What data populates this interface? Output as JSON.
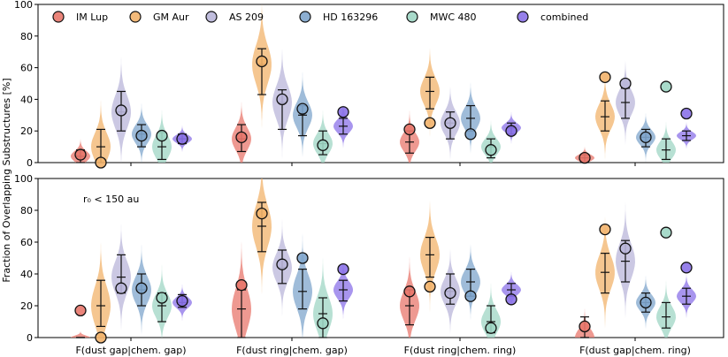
{
  "ylabel": "Fraction of Overlapping Substructures [%]",
  "legend": [
    {
      "key": "im",
      "label": "IM Lup",
      "color": "#e8776c"
    },
    {
      "key": "gm",
      "label": "GM Aur",
      "color": "#f2b36b"
    },
    {
      "key": "as",
      "label": "AS 209",
      "color": "#b9b6d9"
    },
    {
      "key": "hd",
      "label": "HD 163296",
      "color": "#7fa5cc"
    },
    {
      "key": "mwc",
      "label": "MWC 480",
      "color": "#9fd6c4"
    },
    {
      "key": "comb",
      "label": "combined",
      "color": "#8b72e8"
    }
  ],
  "categories": [
    "F(dust gap|chem. gap)",
    "F(dust ring|chem. gap)",
    "F(dust ring|chem. ring)",
    "F(dust gap|chem. ring)"
  ],
  "chart_data": [
    {
      "type": "violin",
      "panel": "top",
      "annotation": "",
      "ylim": [
        0,
        100
      ],
      "yticks": [
        0,
        20,
        40,
        60,
        80,
        100
      ],
      "categories": [
        "F(dust gap|chem. gap)",
        "F(dust ring|chem. gap)",
        "F(dust ring|chem. ring)",
        "F(dust gap|chem. ring)"
      ],
      "series": [
        {
          "name": "IM Lup",
          "observed": [
            5,
            16,
            21,
            3
          ],
          "median": [
            4,
            15,
            13,
            3
          ],
          "low": [
            0,
            7,
            6,
            0
          ],
          "high": [
            8,
            24,
            20,
            5
          ]
        },
        {
          "name": "GM Aur",
          "observed": [
            0,
            64,
            25,
            54
          ],
          "median": [
            10,
            62,
            45,
            29
          ],
          "low": [
            0,
            43,
            34,
            20
          ],
          "high": [
            21,
            72,
            54,
            39
          ]
        },
        {
          "name": "AS 209",
          "observed": [
            33,
            40,
            25,
            50
          ],
          "median": [
            32,
            38,
            25,
            38
          ],
          "low": [
            20,
            21,
            15,
            28
          ],
          "high": [
            45,
            46,
            32,
            47
          ]
        },
        {
          "name": "HD 163296",
          "observed": [
            17,
            34,
            18,
            16
          ],
          "median": [
            18,
            30,
            28,
            16
          ],
          "low": [
            10,
            17,
            20,
            10
          ],
          "high": [
            24,
            36,
            36,
            21
          ]
        },
        {
          "name": "MWC 480",
          "observed": [
            17,
            11,
            8,
            48
          ],
          "median": [
            10,
            12,
            10,
            8
          ],
          "low": [
            2,
            5,
            3,
            2
          ],
          "high": [
            19,
            20,
            15,
            15
          ]
        },
        {
          "name": "combined",
          "observed": [
            15,
            32,
            20,
            31
          ],
          "median": [
            15,
            23,
            22,
            17
          ],
          "low": [
            12,
            18,
            18,
            14
          ],
          "high": [
            18,
            28,
            25,
            20
          ]
        }
      ]
    },
    {
      "type": "violin",
      "panel": "bottom",
      "annotation": "r₀ < 150 au",
      "ylim": [
        0,
        100
      ],
      "yticks": [
        0,
        20,
        40,
        60,
        80,
        100
      ],
      "categories": [
        "F(dust gap|chem. gap)",
        "F(dust ring|chem. gap)",
        "F(dust ring|chem. ring)",
        "F(dust gap|chem. ring)"
      ],
      "series": [
        {
          "name": "IM Lup",
          "observed": [
            17,
            33,
            29,
            7
          ],
          "median": [
            0,
            18,
            20,
            0
          ],
          "low": [
            0,
            0,
            8,
            0
          ],
          "high": [
            0,
            30,
            30,
            13
          ]
        },
        {
          "name": "GM Aur",
          "observed": [
            0,
            78,
            32,
            68
          ],
          "median": [
            20,
            70,
            52,
            41
          ],
          "low": [
            7,
            54,
            38,
            28
          ],
          "high": [
            36,
            85,
            63,
            53
          ]
        },
        {
          "name": "AS 209",
          "observed": [
            31,
            46,
            28,
            56
          ],
          "median": [
            38,
            44,
            29,
            48
          ],
          "low": [
            28,
            34,
            21,
            35
          ],
          "high": [
            52,
            55,
            40,
            61
          ]
        },
        {
          "name": "HD 163296",
          "observed": [
            31,
            50,
            26,
            22
          ],
          "median": [
            30,
            29,
            35,
            22
          ],
          "low": [
            20,
            18,
            26,
            16
          ],
          "high": [
            40,
            43,
            43,
            28
          ]
        },
        {
          "name": "MWC 480",
          "observed": [
            25,
            9,
            6,
            66
          ],
          "median": [
            20,
            15,
            10,
            13
          ],
          "low": [
            10,
            0,
            3,
            6
          ],
          "high": [
            28,
            25,
            20,
            22
          ]
        },
        {
          "name": "combined",
          "observed": [
            23,
            43,
            24,
            44
          ],
          "median": [
            22,
            30,
            30,
            26
          ],
          "low": [
            19,
            23,
            26,
            21
          ],
          "high": [
            27,
            36,
            34,
            31
          ]
        }
      ]
    }
  ]
}
